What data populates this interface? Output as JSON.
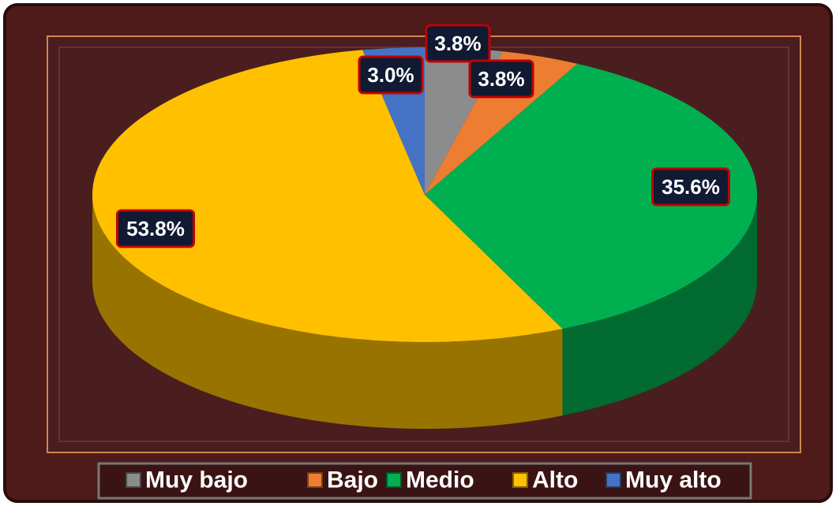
{
  "chart_data": {
    "type": "pie",
    "categories": [
      "Muy bajo",
      "Bajo",
      "Medio",
      "Alto",
      "Muy alto"
    ],
    "values": [
      3.8,
      3.8,
      35.6,
      53.8,
      3.0
    ],
    "value_labels": [
      "3.8%",
      "3.8%",
      "35.6%",
      "53.8%",
      "3.0%"
    ],
    "colors": [
      "#8c8c8c",
      "#ed7d31",
      "#00b050",
      "#ffc000",
      "#4472c4"
    ],
    "legend": "bottom"
  }
}
